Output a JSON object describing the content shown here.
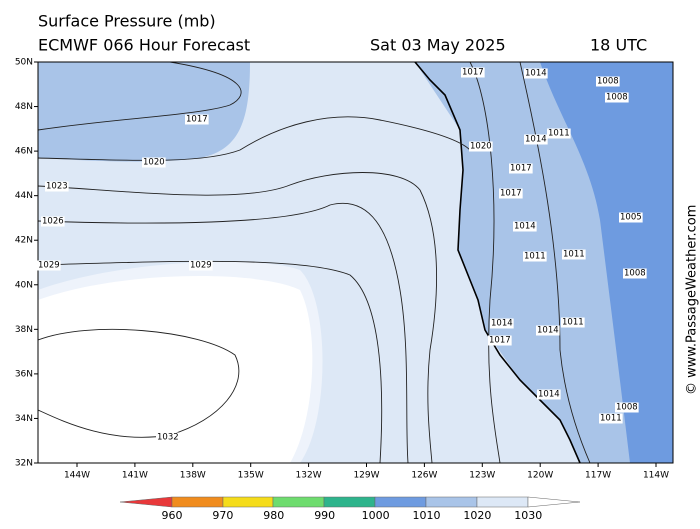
{
  "header": {
    "title": "Surface Pressure (mb)",
    "model": "ECMWF 066 Hour Forecast",
    "date": "Sat 03 May 2025",
    "time": "18 UTC"
  },
  "lat_labels": [
    "50N",
    "48N",
    "46N",
    "44N",
    "42N",
    "40N",
    "38N",
    "36N",
    "34N",
    "32N"
  ],
  "lon_labels": [
    "144W",
    "141W",
    "138W",
    "135W",
    "132W",
    "129W",
    "126W",
    "123W",
    "120W",
    "117W",
    "114W"
  ],
  "colorbar": {
    "labels": [
      "960",
      "970",
      "980",
      "990",
      "1000",
      "1010",
      "1020",
      "1030"
    ]
  },
  "contour_labels": [
    "1017",
    "1020",
    "1023",
    "1026",
    "1029",
    "1029",
    "1032",
    "1020",
    "1017",
    "1014",
    "1017",
    "1014",
    "1011",
    "1017",
    "1014",
    "1011",
    "1011",
    "1014",
    "1017",
    "1014",
    "1011",
    "1008",
    "1008",
    "1005",
    "1008",
    "1011",
    "1014",
    "1008"
  ],
  "watermark": "© www.PassageWeather.com"
}
